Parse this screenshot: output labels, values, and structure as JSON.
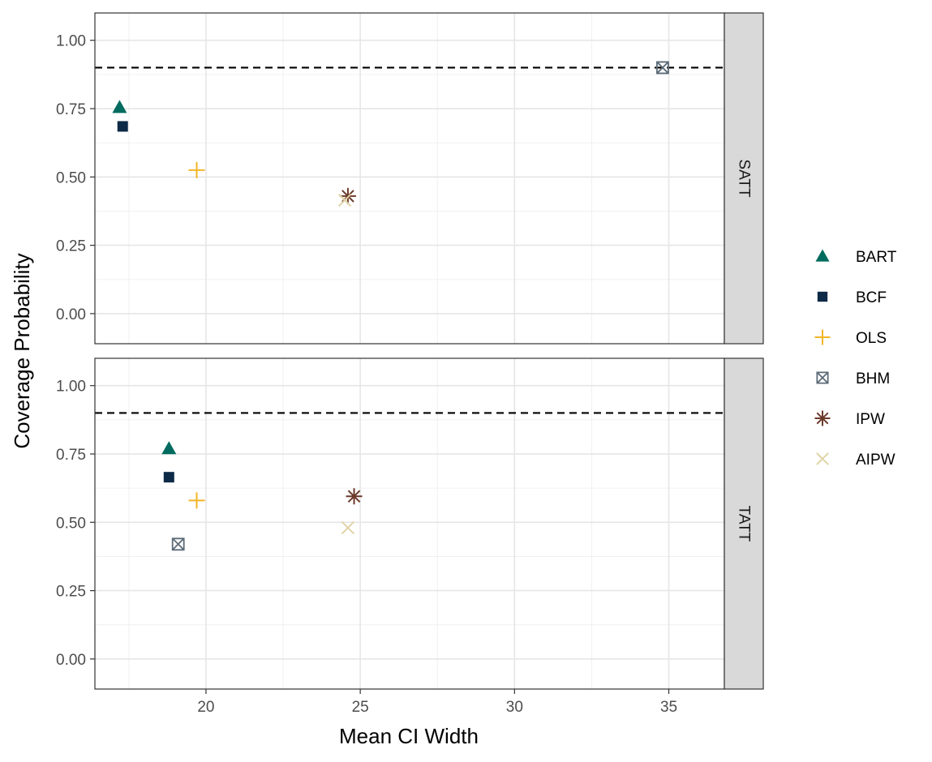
{
  "chart_data": {
    "type": "scatter",
    "xlabel": "Mean CI Width",
    "ylabel": "Coverage Probability",
    "xlim": [
      16.4,
      36.8
    ],
    "ylim": [
      -0.11,
      1.1
    ],
    "xticks": [
      20,
      25,
      30,
      35
    ],
    "xtick_labels": [
      "20",
      "25",
      "30",
      "35"
    ],
    "yticks": [
      0,
      0.25,
      0.5,
      0.75,
      1.0
    ],
    "ytick_labels": [
      "0.00",
      "0.25",
      "0.50",
      "0.75",
      "1.00"
    ],
    "reference_line": 0.9,
    "grid": true,
    "legend_position": "right",
    "legend": [
      {
        "name": "BART",
        "shape": "triangle",
        "color": "#006b5e"
      },
      {
        "name": "BCF",
        "shape": "square",
        "color": "#0d2a47"
      },
      {
        "name": "OLS",
        "shape": "plus",
        "color": "#f2b527"
      },
      {
        "name": "BHM",
        "shape": "boxcross",
        "color": "#5c6b78"
      },
      {
        "name": "IPW",
        "shape": "asterisk",
        "color": "#6b3a2a"
      },
      {
        "name": "AIPW",
        "shape": "cross",
        "color": "#e0d4a8"
      }
    ],
    "panels": [
      {
        "label": "SATT",
        "points": [
          {
            "method": "BART",
            "x": 17.2,
            "y": 0.755
          },
          {
            "method": "BCF",
            "x": 17.3,
            "y": 0.685
          },
          {
            "method": "OLS",
            "x": 19.7,
            "y": 0.525
          },
          {
            "method": "BHM",
            "x": 34.8,
            "y": 0.9
          },
          {
            "method": "IPW",
            "x": 24.6,
            "y": 0.43
          },
          {
            "method": "AIPW",
            "x": 24.5,
            "y": 0.415
          }
        ]
      },
      {
        "label": "TATT",
        "points": [
          {
            "method": "BART",
            "x": 18.8,
            "y": 0.77
          },
          {
            "method": "BCF",
            "x": 18.8,
            "y": 0.665
          },
          {
            "method": "OLS",
            "x": 19.7,
            "y": 0.58
          },
          {
            "method": "BHM",
            "x": 19.1,
            "y": 0.42
          },
          {
            "method": "IPW",
            "x": 24.8,
            "y": 0.595
          },
          {
            "method": "AIPW",
            "x": 24.6,
            "y": 0.48
          }
        ]
      }
    ]
  }
}
